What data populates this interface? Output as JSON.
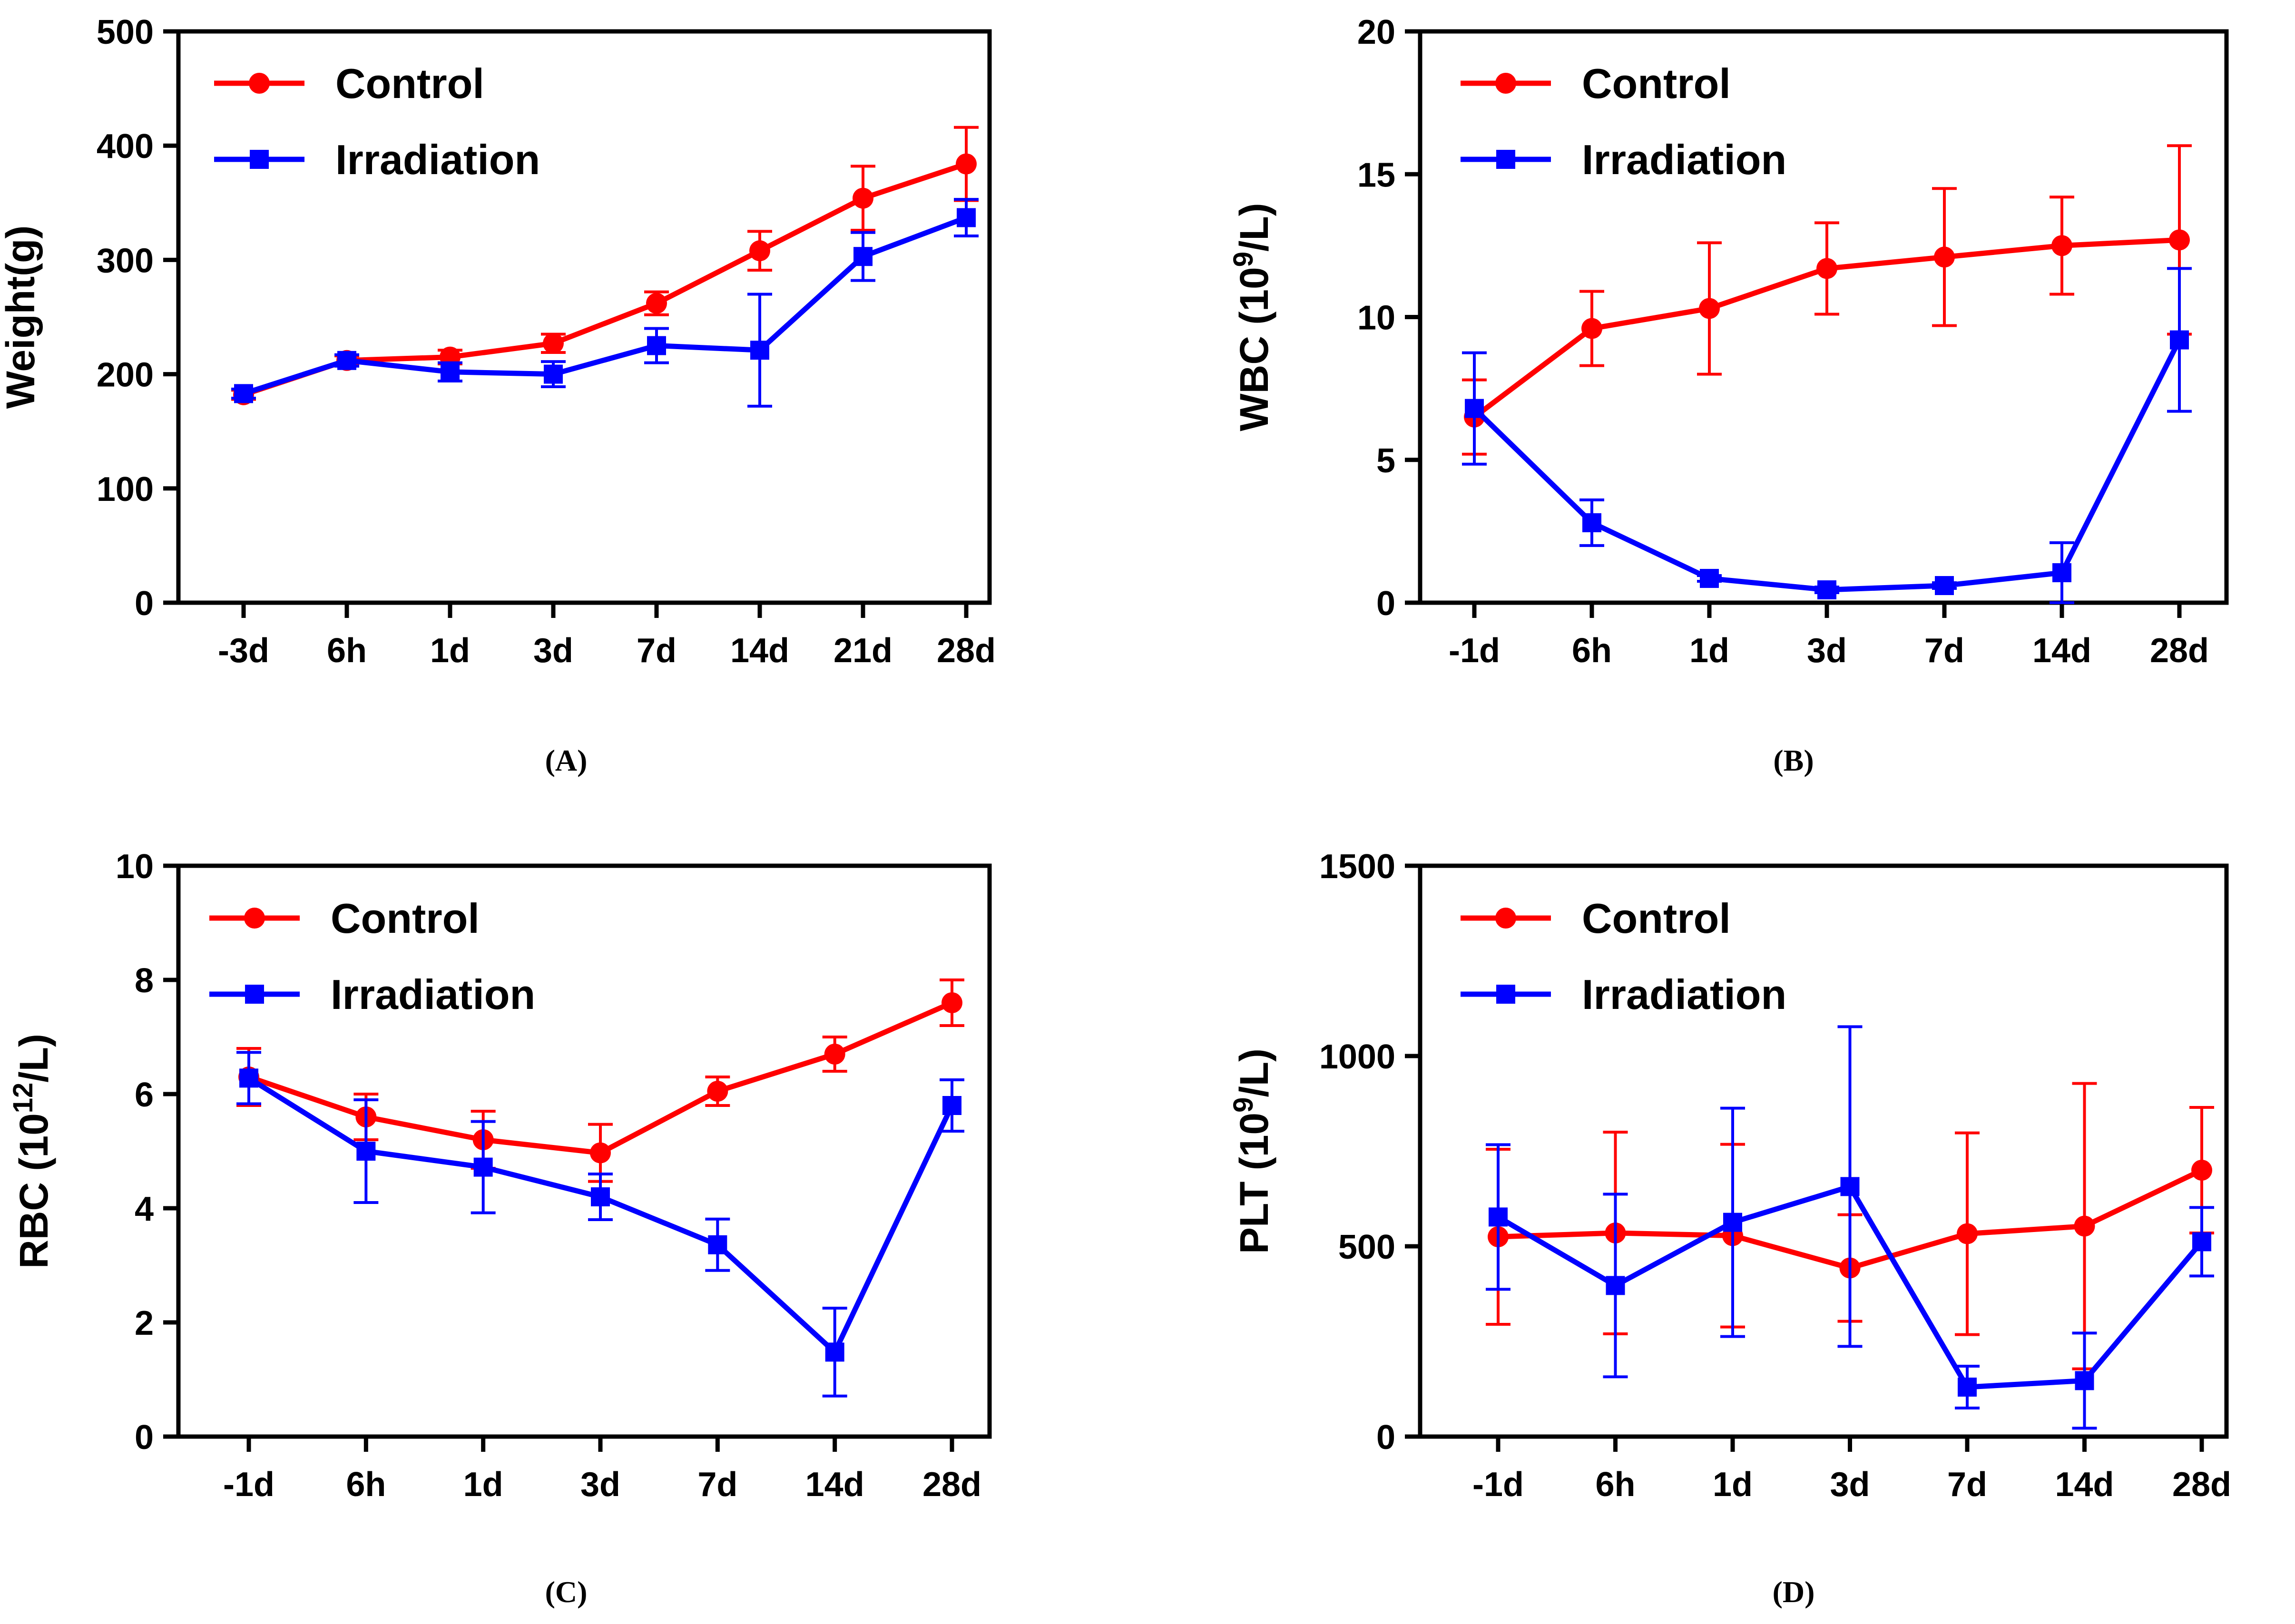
{
  "chart_data": [
    {
      "panel": "A",
      "type": "line",
      "caption": "(A)",
      "ylabel": "Weight(g)",
      "ylabel_parts": [
        {
          "t": "Weight(g)"
        }
      ],
      "ylim": [
        0,
        500
      ],
      "yticks": [
        0,
        100,
        200,
        300,
        400,
        500
      ],
      "categories": [
        "-3d",
        "6h",
        "1d",
        "3d",
        "7d",
        "14d",
        "21d",
        "28d"
      ],
      "legend": [
        "Control",
        "Irradiation"
      ],
      "series": [
        {
          "name": "Control",
          "color": "#ff0000",
          "marker": "circle",
          "values": [
            182,
            212,
            215,
            227,
            262,
            308,
            354,
            384
          ],
          "errors": [
            4,
            4,
            6,
            8,
            10,
            17,
            28,
            32
          ]
        },
        {
          "name": "Irradiation",
          "color": "#0000ff",
          "marker": "square",
          "values": [
            183,
            212,
            202,
            200,
            225,
            221,
            303,
            337
          ],
          "errors": [
            4,
            5,
            8,
            11,
            15,
            49,
            21,
            16
          ]
        }
      ]
    },
    {
      "panel": "B",
      "type": "line",
      "caption": "(B)",
      "ylabel": "WBC (10^9/L)",
      "ylabel_parts": [
        {
          "t": "WBC (10"
        },
        {
          "t": "9",
          "sup": true
        },
        {
          "t": "/L)"
        }
      ],
      "ylim": [
        0,
        20
      ],
      "yticks": [
        0,
        5,
        10,
        15,
        20
      ],
      "categories": [
        "-1d",
        "6h",
        "1d",
        "3d",
        "7d",
        "14d",
        "28d"
      ],
      "legend": [
        "Control",
        "Irradiation"
      ],
      "series": [
        {
          "name": "Control",
          "color": "#ff0000",
          "marker": "circle",
          "values": [
            6.5,
            9.6,
            10.3,
            11.7,
            12.1,
            12.5,
            12.7
          ],
          "errors": [
            1.3,
            1.3,
            2.3,
            1.6,
            2.4,
            1.7,
            3.3
          ]
        },
        {
          "name": "Irradiation",
          "color": "#0000ff",
          "marker": "square",
          "values": [
            6.8,
            2.8,
            0.85,
            0.45,
            0.6,
            1.05,
            9.2
          ],
          "errors": [
            1.95,
            0.8,
            0.1,
            0.1,
            0.1,
            1.05,
            2.5
          ]
        }
      ]
    },
    {
      "panel": "C",
      "type": "line",
      "caption": "(C)",
      "ylabel": "RBC (10^12/L)",
      "ylabel_parts": [
        {
          "t": "RBC (10"
        },
        {
          "t": "12",
          "sup": true
        },
        {
          "t": "/L)"
        }
      ],
      "ylim": [
        0,
        10
      ],
      "yticks": [
        0,
        2,
        4,
        6,
        8,
        10
      ],
      "categories": [
        "-1d",
        "6h",
        "1d",
        "3d",
        "7d",
        "14d",
        "28d"
      ],
      "legend": [
        "Control",
        "Irradiation"
      ],
      "series": [
        {
          "name": "Control",
          "color": "#ff0000",
          "marker": "circle",
          "values": [
            6.3,
            5.6,
            5.2,
            4.97,
            6.05,
            6.7,
            7.6
          ],
          "errors": [
            0.5,
            0.4,
            0.5,
            0.5,
            0.25,
            0.3,
            0.4
          ]
        },
        {
          "name": "Irradiation",
          "color": "#0000ff",
          "marker": "square",
          "values": [
            6.28,
            5.0,
            4.72,
            4.2,
            3.36,
            1.48,
            5.8
          ],
          "errors": [
            0.45,
            0.9,
            0.8,
            0.4,
            0.45,
            0.77,
            0.45
          ]
        }
      ]
    },
    {
      "panel": "D",
      "type": "line",
      "caption": "(D)",
      "ylabel": "PLT (10^9/L)",
      "ylabel_parts": [
        {
          "t": "PLT (10"
        },
        {
          "t": "9",
          "sup": true
        },
        {
          "t": "/L)"
        }
      ],
      "ylim": [
        0,
        1500
      ],
      "yticks": [
        0,
        500,
        1000,
        1500
      ],
      "categories": [
        "-1d",
        "6h",
        "1d",
        "3d",
        "7d",
        "14d",
        "28d"
      ],
      "legend": [
        "Control",
        "Irradiation"
      ],
      "series": [
        {
          "name": "Control",
          "color": "#ff0000",
          "marker": "circle",
          "values": [
            525,
            535,
            528,
            443,
            533,
            553,
            700
          ],
          "errors": [
            230,
            265,
            240,
            140,
            265,
            375,
            165
          ]
        },
        {
          "name": "Irradiation",
          "color": "#0000ff",
          "marker": "square",
          "values": [
            577,
            397,
            563,
            657,
            130,
            147,
            512
          ],
          "errors": [
            190,
            240,
            300,
            420,
            55,
            125,
            90
          ]
        }
      ]
    }
  ]
}
